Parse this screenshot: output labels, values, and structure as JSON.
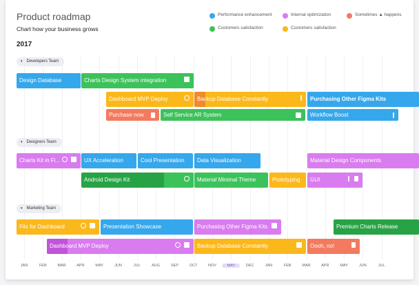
{
  "header": {
    "title": "Product roadmap",
    "subtitle": "Chart how your business grows",
    "year": "2017"
  },
  "legend": [
    "Performance enhancement",
    "Internal optimization",
    "Sometimes ▲ happens",
    "Customers satisfaction",
    "Customers satisfaction"
  ],
  "months": [
    "JAN",
    "FEB",
    "MAR",
    "APR",
    "MAY",
    "JUN",
    "JUL",
    "AUG",
    "SEP",
    "OCT",
    "NOV",
    "MAY",
    "DEC",
    "JAN",
    "FEB",
    "MAR",
    "APR",
    "MAY",
    "JUN",
    "JUL"
  ],
  "groups": [
    {
      "name": "Developers Team",
      "tasks": [
        "Design Database",
        "Charts Design System integration",
        "Dashboard MVP Deploy",
        "Backup Database Constantly",
        "Purchasing Other Figma Kits",
        "Purchase now",
        "Self Service AR System",
        "Workflow Boost"
      ]
    },
    {
      "name": "Designers Team",
      "tasks": [
        "Charts Kit in Fi...",
        "UX Acceleration",
        "Cool Presentation",
        "Data Visualization",
        "Material Design Components",
        "Android Design Kit",
        "Material Minimal Theme",
        "Prototyping",
        "GUI"
      ]
    },
    {
      "name": "Marketing Team",
      "tasks": [
        "Fits for Dashboard",
        "Presentation Showcase",
        "Purchasing Other Figma Kits",
        "Premium Charts Release",
        "Dashboard MVP Deploy",
        "Backup Database Constantly",
        "Oooh, no!"
      ]
    }
  ]
}
